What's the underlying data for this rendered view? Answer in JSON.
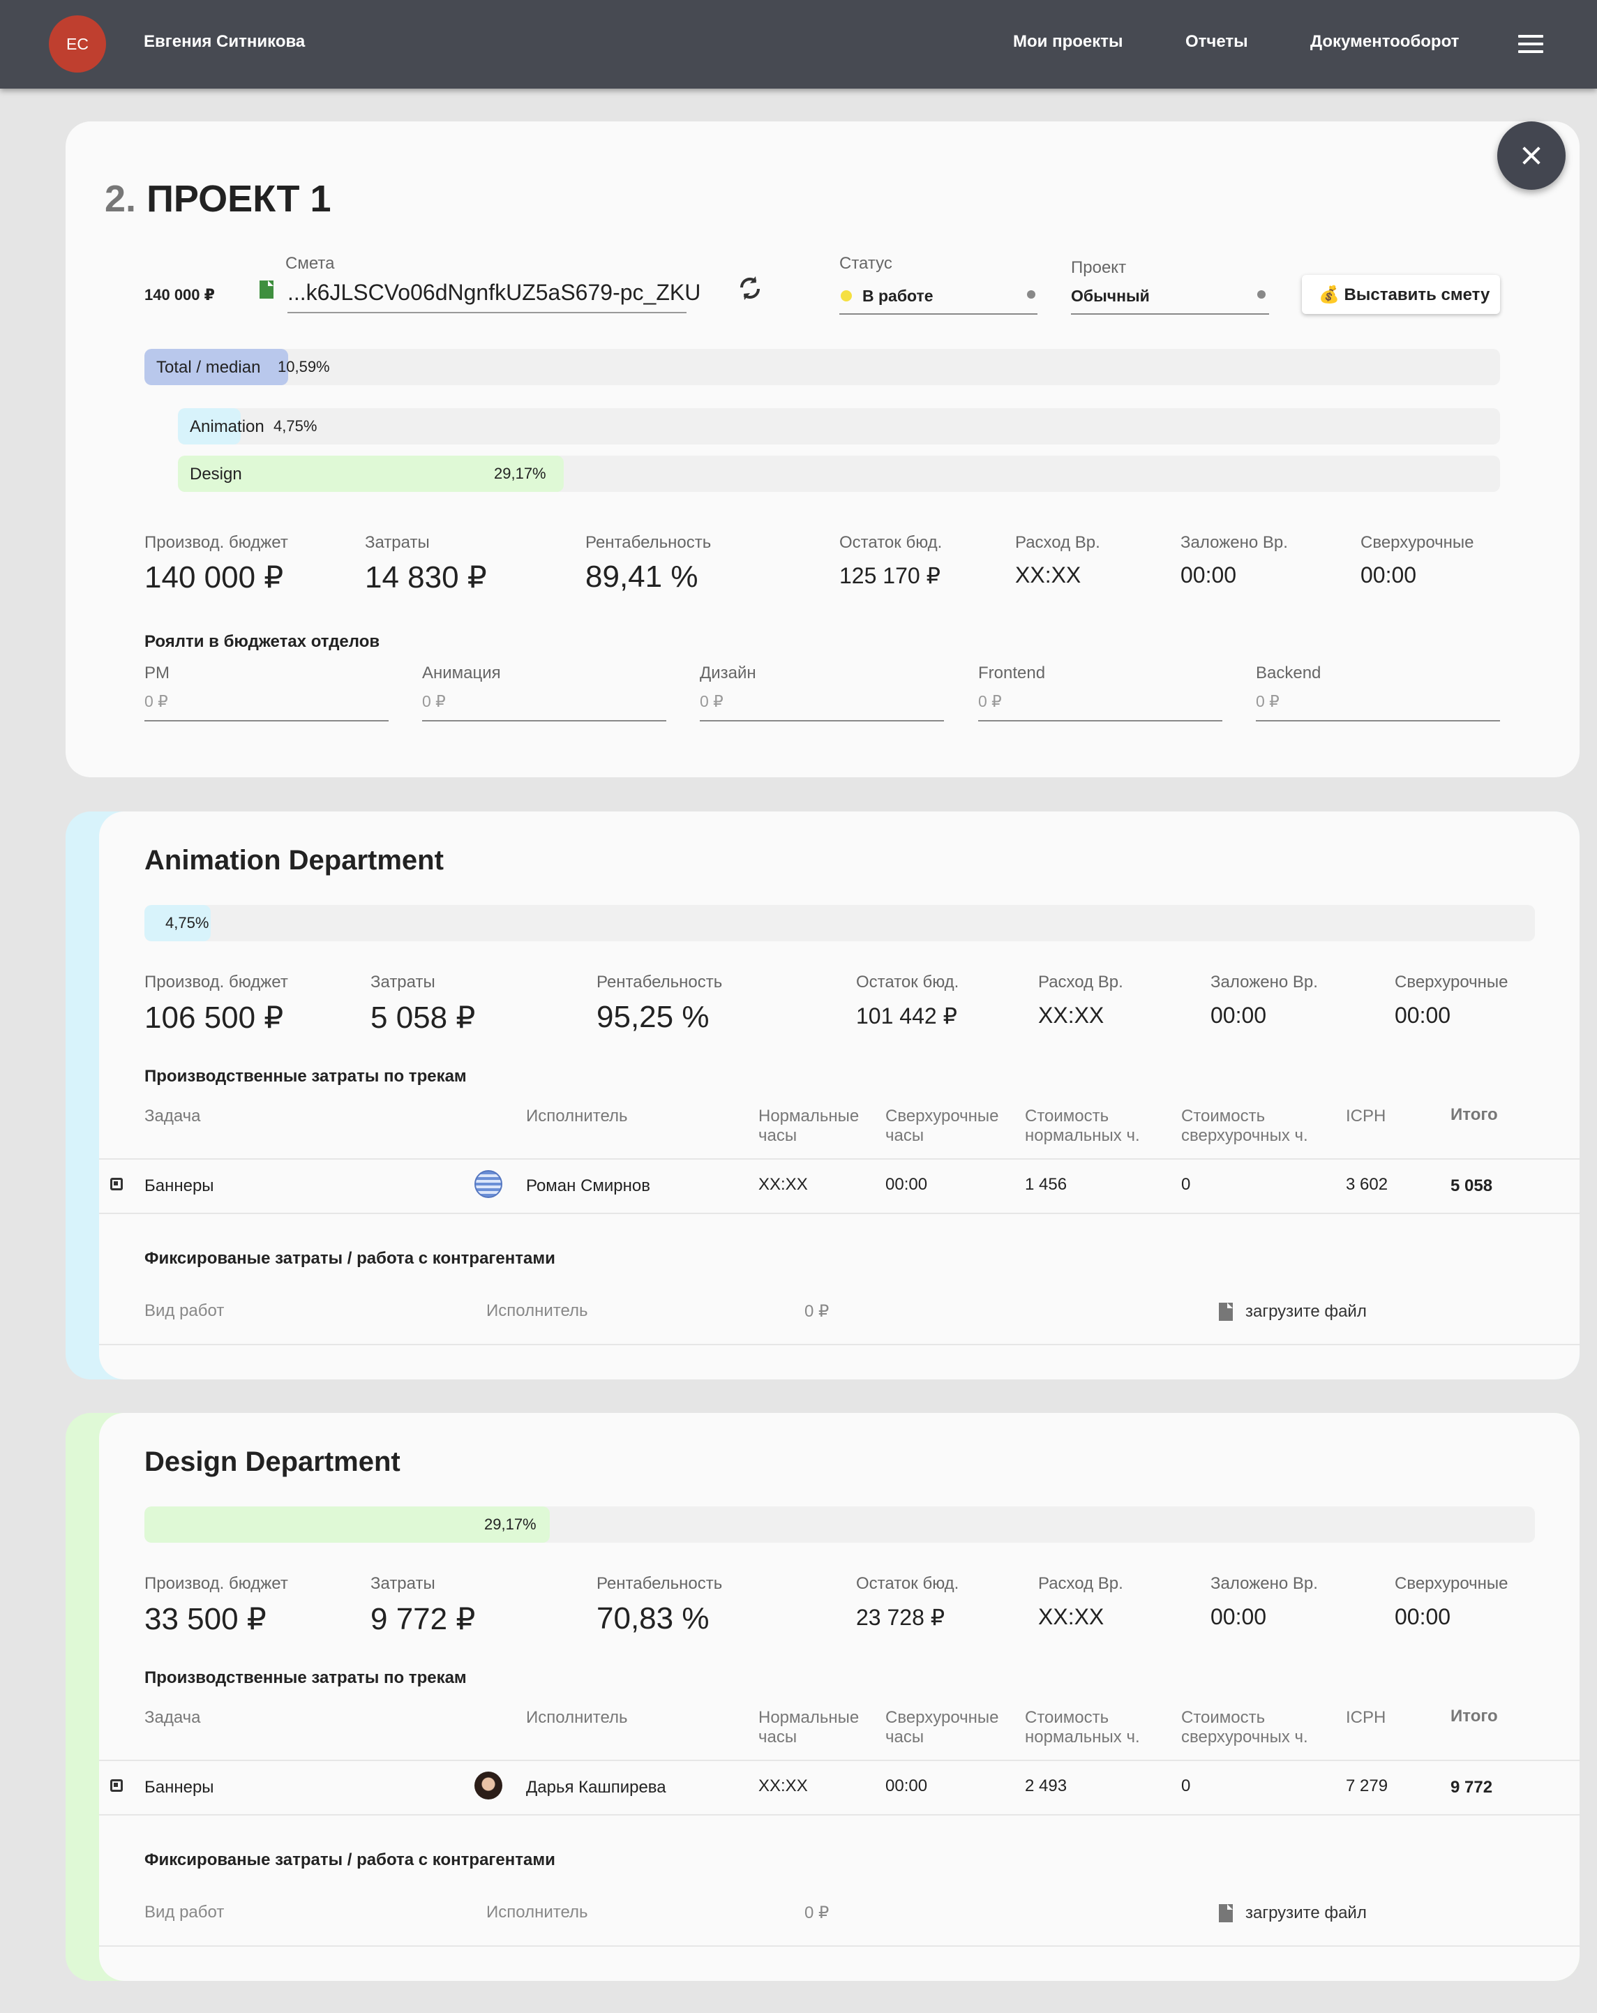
{
  "topbar": {
    "initials": "ЕС",
    "user_name": "Евгения Ситникова",
    "nav": [
      "Мои проекты",
      "Отчеты",
      "Документооборот"
    ],
    "menu_icon": "hamburger-icon"
  },
  "project": {
    "number": "2.",
    "title": "ПРОЕКТ 1",
    "budget_small": "140 000 ₽",
    "estimate": {
      "label": "Смета",
      "value": "...k6JLSCVo06dNgnfkUZ5aS679-pc_ZKU"
    },
    "status": {
      "label": "Статус",
      "value": "В работе",
      "color": "#f5e041"
    },
    "project_type": {
      "label": "Проект",
      "value": "Обычный"
    },
    "issue_button": "💰 Выставить смету",
    "bars": {
      "total": {
        "label": "Total / median",
        "value": "10,59%",
        "fraction": 0.1059
      },
      "animation": {
        "label": "Animation",
        "value": "4,75%",
        "fraction": 0.0475
      },
      "design": {
        "label": "Design",
        "value": "29,17%",
        "fraction": 0.2917
      }
    },
    "stats": [
      {
        "label": "Производ. бюджет",
        "value": "140 000 ₽"
      },
      {
        "label": "Затраты",
        "value": "14 830 ₽"
      },
      {
        "label": "Рентабельность",
        "value": "89,41 %"
      },
      {
        "label": "Остаток бюд.",
        "value": "125 170 ₽"
      },
      {
        "label": "Расход Вр.",
        "value": "XX:XX"
      },
      {
        "label": "Заложено Вр.",
        "value": "00:00"
      },
      {
        "label": "Сверхурочные",
        "value": "00:00"
      }
    ],
    "royalty_title": "Роялти в бюджетах отделов",
    "royalties": [
      {
        "label": "PM",
        "value": "0 ₽"
      },
      {
        "label": "Анимация",
        "value": "0 ₽"
      },
      {
        "label": "Дизайн",
        "value": "0 ₽"
      },
      {
        "label": "Frontend",
        "value": "0 ₽"
      },
      {
        "label": "Backend",
        "value": "0 ₽"
      }
    ]
  },
  "table_headers": {
    "task": "Задача",
    "performer": "Исполнитель",
    "normal_hours": [
      "Нормальные",
      "часы"
    ],
    "overtime_hours": [
      "Сверхурочные",
      "часы"
    ],
    "normal_cost": [
      "Стоимость",
      "нормальных ч."
    ],
    "overtime_cost": [
      "Стоимость",
      "сверхурочных ч."
    ],
    "icph": "ICPH",
    "total": "Итого"
  },
  "fixed_headers": {
    "work_type": "Вид работ",
    "performer": "Исполнитель",
    "amount": "0 ₽",
    "upload": "загрузите файл"
  },
  "departments": [
    {
      "title": "Animation Department",
      "accent": "#d8f3fb",
      "progress": {
        "value": "4,75%",
        "fraction": 0.0475
      },
      "stats": [
        {
          "label": "Производ. бюджет",
          "value": "106 500 ₽"
        },
        {
          "label": "Затраты",
          "value": "5 058 ₽"
        },
        {
          "label": "Рентабельность",
          "value": "95,25 %"
        },
        {
          "label": "Остаток бюд.",
          "value": "101 442 ₽"
        },
        {
          "label": "Расход Вр.",
          "value": "XX:XX"
        },
        {
          "label": "Заложено Вр.",
          "value": "00:00"
        },
        {
          "label": "Сверхурочные",
          "value": "00:00"
        }
      ],
      "tracks_title": "Производственные затраты по трекам",
      "row": {
        "task": "Баннеры",
        "performer": "Роман Смирнов",
        "normal_hours": "XX:XX",
        "overtime_hours": "00:00",
        "normal_cost": "1 456",
        "overtime_cost": "0",
        "icph": "3 602",
        "total": "5 058"
      },
      "fixed_title": "Фиксированые затраты / работа с контрагентами"
    },
    {
      "title": "Design Department",
      "accent": "#dff9d6",
      "progress": {
        "value": "29,17%",
        "fraction": 0.2917
      },
      "stats": [
        {
          "label": "Производ. бюджет",
          "value": "33 500 ₽"
        },
        {
          "label": "Затраты",
          "value": "9 772 ₽"
        },
        {
          "label": "Рентабельность",
          "value": "70,83 %"
        },
        {
          "label": "Остаток бюд.",
          "value": "23 728 ₽"
        },
        {
          "label": "Расход Вр.",
          "value": "XX:XX"
        },
        {
          "label": "Заложено Вр.",
          "value": "00:00"
        },
        {
          "label": "Сверхурочные",
          "value": "00:00"
        }
      ],
      "tracks_title": "Производственные затраты по трекам",
      "row": {
        "task": "Баннеры",
        "performer": "Дарья Кашпирева",
        "normal_hours": "XX:XX",
        "overtime_hours": "00:00",
        "normal_cost": "2 493",
        "overtime_cost": "0",
        "icph": "7 279",
        "total": "9 772"
      },
      "fixed_title": "Фиксированые затраты / работа с контрагентами"
    }
  ]
}
